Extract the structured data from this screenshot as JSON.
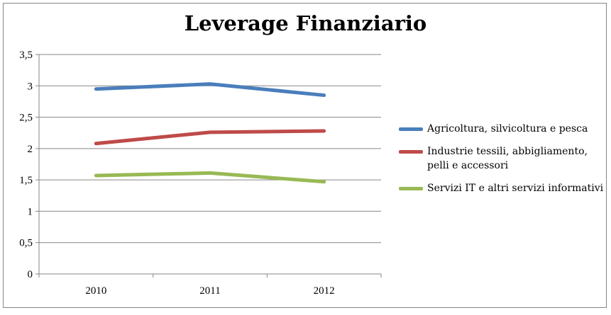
{
  "chart_data": {
    "type": "line",
    "title": "Leverage Finanziario",
    "categories": [
      "2010",
      "2011",
      "2012"
    ],
    "series": [
      {
        "name": "Agricoltura, silvicoltura e pesca",
        "values": [
          2.95,
          3.03,
          2.85
        ],
        "color": "#4a7ebb"
      },
      {
        "name": "Industrie tessili, abbigliamento, pelli e accessori",
        "values": [
          2.08,
          2.26,
          2.28
        ],
        "color": "#be4b48"
      },
      {
        "name": "Servizi IT e altri servizi informativi",
        "values": [
          1.57,
          1.61,
          1.47
        ],
        "color": "#98b954"
      }
    ],
    "ylim": [
      0,
      3.5
    ],
    "yticks": [
      "0",
      "0,5",
      "1",
      "1,5",
      "2",
      "2,5",
      "3",
      "3,5"
    ],
    "grid": true,
    "legend_position": "right"
  }
}
